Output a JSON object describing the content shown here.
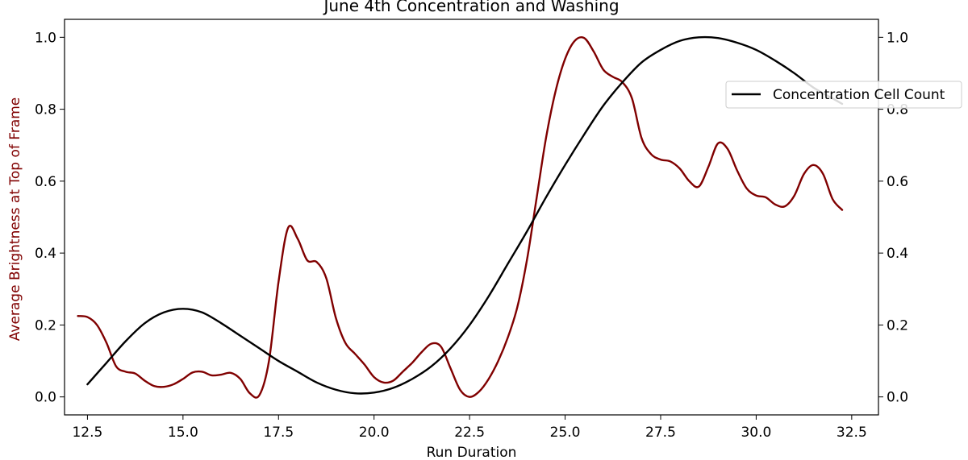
{
  "chart_data": {
    "type": "line",
    "title": "June 4th Concentration and Washing",
    "xlabel": "Run Duration",
    "ylabel_left": "Average Brightness at Top of Frame",
    "ylabel_right": "",
    "xlim": [
      11.9,
      33.2
    ],
    "ylim_left": [
      -0.05,
      1.05
    ],
    "ylim_right": [
      -0.05,
      1.05
    ],
    "x_ticks": [
      "12.5",
      "15.0",
      "17.5",
      "20.0",
      "22.5",
      "25.0",
      "27.5",
      "30.0",
      "32.5"
    ],
    "y_ticks_left": [
      "0.0",
      "0.2",
      "0.4",
      "0.6",
      "0.8",
      "1.0"
    ],
    "y_ticks_right": [
      "0.0",
      "0.2",
      "0.4",
      "0.6",
      "0.8",
      "1.0"
    ],
    "grid": false,
    "legend_placement": "upper-right",
    "colors": {
      "brightness": "#800000",
      "cell_count": "#000000"
    },
    "series": [
      {
        "axis": "left",
        "x": [
          12.25,
          12.5,
          12.75,
          13.0,
          13.25,
          13.5,
          13.75,
          14.0,
          14.25,
          14.5,
          14.75,
          15.0,
          15.25,
          15.5,
          15.75,
          16.0,
          16.25,
          16.5,
          16.75,
          17.0,
          17.25,
          17.5,
          17.75,
          18.0,
          18.25,
          18.5,
          18.75,
          19.0,
          19.25,
          19.5,
          19.75,
          20.0,
          20.25,
          20.5,
          20.75,
          21.0,
          21.25,
          21.5,
          21.75,
          22.0,
          22.25,
          22.5,
          22.75,
          23.0,
          23.25,
          23.5,
          23.75,
          24.0,
          24.25,
          24.5,
          24.75,
          25.0,
          25.25,
          25.5,
          25.75,
          26.0,
          26.25,
          26.5,
          26.75,
          27.0,
          27.25,
          27.5,
          27.75,
          28.0,
          28.25,
          28.5,
          28.75,
          29.0,
          29.25,
          29.5,
          29.75,
          30.0,
          30.25,
          30.5,
          30.75,
          31.0,
          31.25,
          31.5,
          31.75,
          32.0,
          32.25
        ],
        "values": [
          0.225,
          0.222,
          0.2,
          0.15,
          0.085,
          0.07,
          0.065,
          0.045,
          0.03,
          0.028,
          0.035,
          0.05,
          0.068,
          0.07,
          0.06,
          0.062,
          0.067,
          0.05,
          0.01,
          0.005,
          0.1,
          0.32,
          0.47,
          0.44,
          0.38,
          0.375,
          0.33,
          0.22,
          0.15,
          0.12,
          0.09,
          0.055,
          0.04,
          0.045,
          0.07,
          0.095,
          0.125,
          0.148,
          0.14,
          0.08,
          0.02,
          0.0,
          0.015,
          0.05,
          0.1,
          0.165,
          0.25,
          0.38,
          0.55,
          0.72,
          0.85,
          0.94,
          0.99,
          0.998,
          0.96,
          0.91,
          0.89,
          0.875,
          0.83,
          0.72,
          0.675,
          0.66,
          0.655,
          0.635,
          0.6,
          0.585,
          0.64,
          0.705,
          0.69,
          0.63,
          0.58,
          0.56,
          0.555,
          0.535,
          0.53,
          0.56,
          0.62,
          0.645,
          0.62,
          0.55,
          0.52
        ]
      },
      {
        "name": "Concentration Cell Count",
        "axis": "right",
        "x": [
          12.5,
          13.0,
          13.5,
          14.0,
          14.5,
          15.0,
          15.5,
          16.0,
          16.5,
          17.0,
          17.5,
          18.0,
          18.5,
          19.0,
          19.5,
          20.0,
          20.5,
          21.0,
          21.5,
          22.0,
          22.5,
          23.0,
          23.5,
          24.0,
          24.5,
          25.0,
          25.5,
          26.0,
          26.5,
          27.0,
          27.5,
          28.0,
          28.5,
          29.0,
          29.5,
          30.0,
          30.5,
          31.0,
          31.5,
          32.0,
          32.25
        ],
        "values": [
          0.035,
          0.095,
          0.155,
          0.205,
          0.235,
          0.245,
          0.235,
          0.205,
          0.17,
          0.135,
          0.1,
          0.07,
          0.04,
          0.02,
          0.01,
          0.012,
          0.025,
          0.05,
          0.085,
          0.135,
          0.2,
          0.28,
          0.37,
          0.46,
          0.555,
          0.645,
          0.73,
          0.81,
          0.875,
          0.93,
          0.965,
          0.99,
          1.0,
          0.998,
          0.985,
          0.965,
          0.935,
          0.9,
          0.86,
          0.83,
          0.815
        ]
      }
    ]
  }
}
